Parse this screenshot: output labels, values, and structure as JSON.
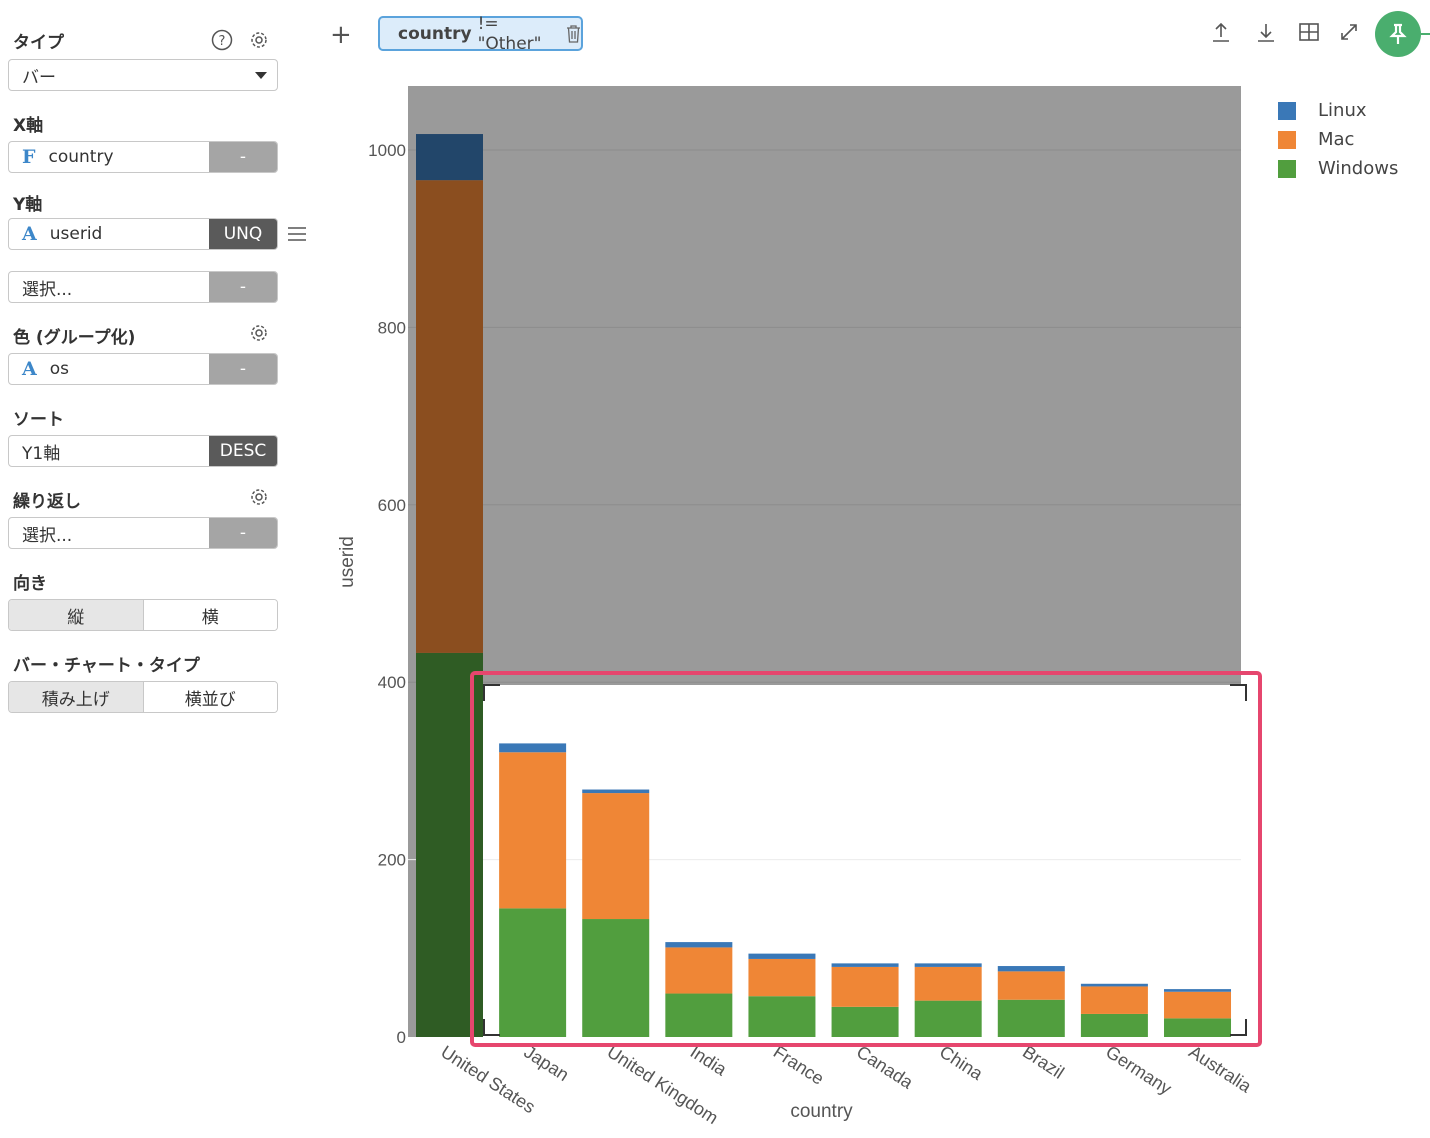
{
  "sidebar": {
    "type_label": "タイプ",
    "type_value": "バー",
    "x_label": "X軸",
    "x_field": "country",
    "x_type_icon": "F",
    "x_btn": "-",
    "y_label": "Y軸",
    "y_field": "userid",
    "y_type_icon": "A",
    "y_btn": "UNQ",
    "y2_placeholder": "選択...",
    "y2_btn": "-",
    "color_label": "色 (グループ化)",
    "color_field": "os",
    "color_type_icon": "A",
    "color_btn": "-",
    "sort_label": "ソート",
    "sort_field": "Y1軸",
    "sort_btn": "DESC",
    "repeat_label": "繰り返し",
    "repeat_placeholder": "選択...",
    "repeat_btn": "-",
    "orient_label": "向き",
    "orient_options": [
      "縦",
      "横"
    ],
    "bartype_label": "バー・チャート・タイプ",
    "bartype_options": [
      "積み上げ",
      "横並び"
    ]
  },
  "toolbar": {
    "add": "+",
    "filter_field": "country",
    "filter_rest": "!= \"Other\""
  },
  "colors": {
    "linux": "#3a78b7",
    "mac": "#ef8636",
    "windows": "#519e3e",
    "highlight": "#e6466e",
    "pin": "#4aae6e"
  },
  "chart_data": {
    "type": "bar",
    "stacked": true,
    "xlabel": "country",
    "ylabel": "userid",
    "ylim": [
      0,
      1100
    ],
    "yticks": [
      0,
      200,
      400,
      600,
      800,
      1000
    ],
    "categories": [
      "United States",
      "Japan",
      "United Kingdom",
      "India",
      "France",
      "Canada",
      "China",
      "Brazil",
      "Germany",
      "Australia"
    ],
    "series": [
      {
        "name": "Windows",
        "values": [
          433,
          145,
          133,
          49,
          46,
          34,
          41,
          42,
          26,
          21
        ]
      },
      {
        "name": "Mac",
        "values": [
          533,
          176,
          142,
          52,
          42,
          45,
          38,
          32,
          31,
          30
        ]
      },
      {
        "name": "Linux",
        "values": [
          52,
          10,
          4,
          6,
          6,
          4,
          4,
          6,
          3,
          3
        ]
      }
    ],
    "legend_position": "top-right",
    "highlight_region": "Japan through Australia, y 0–400"
  }
}
